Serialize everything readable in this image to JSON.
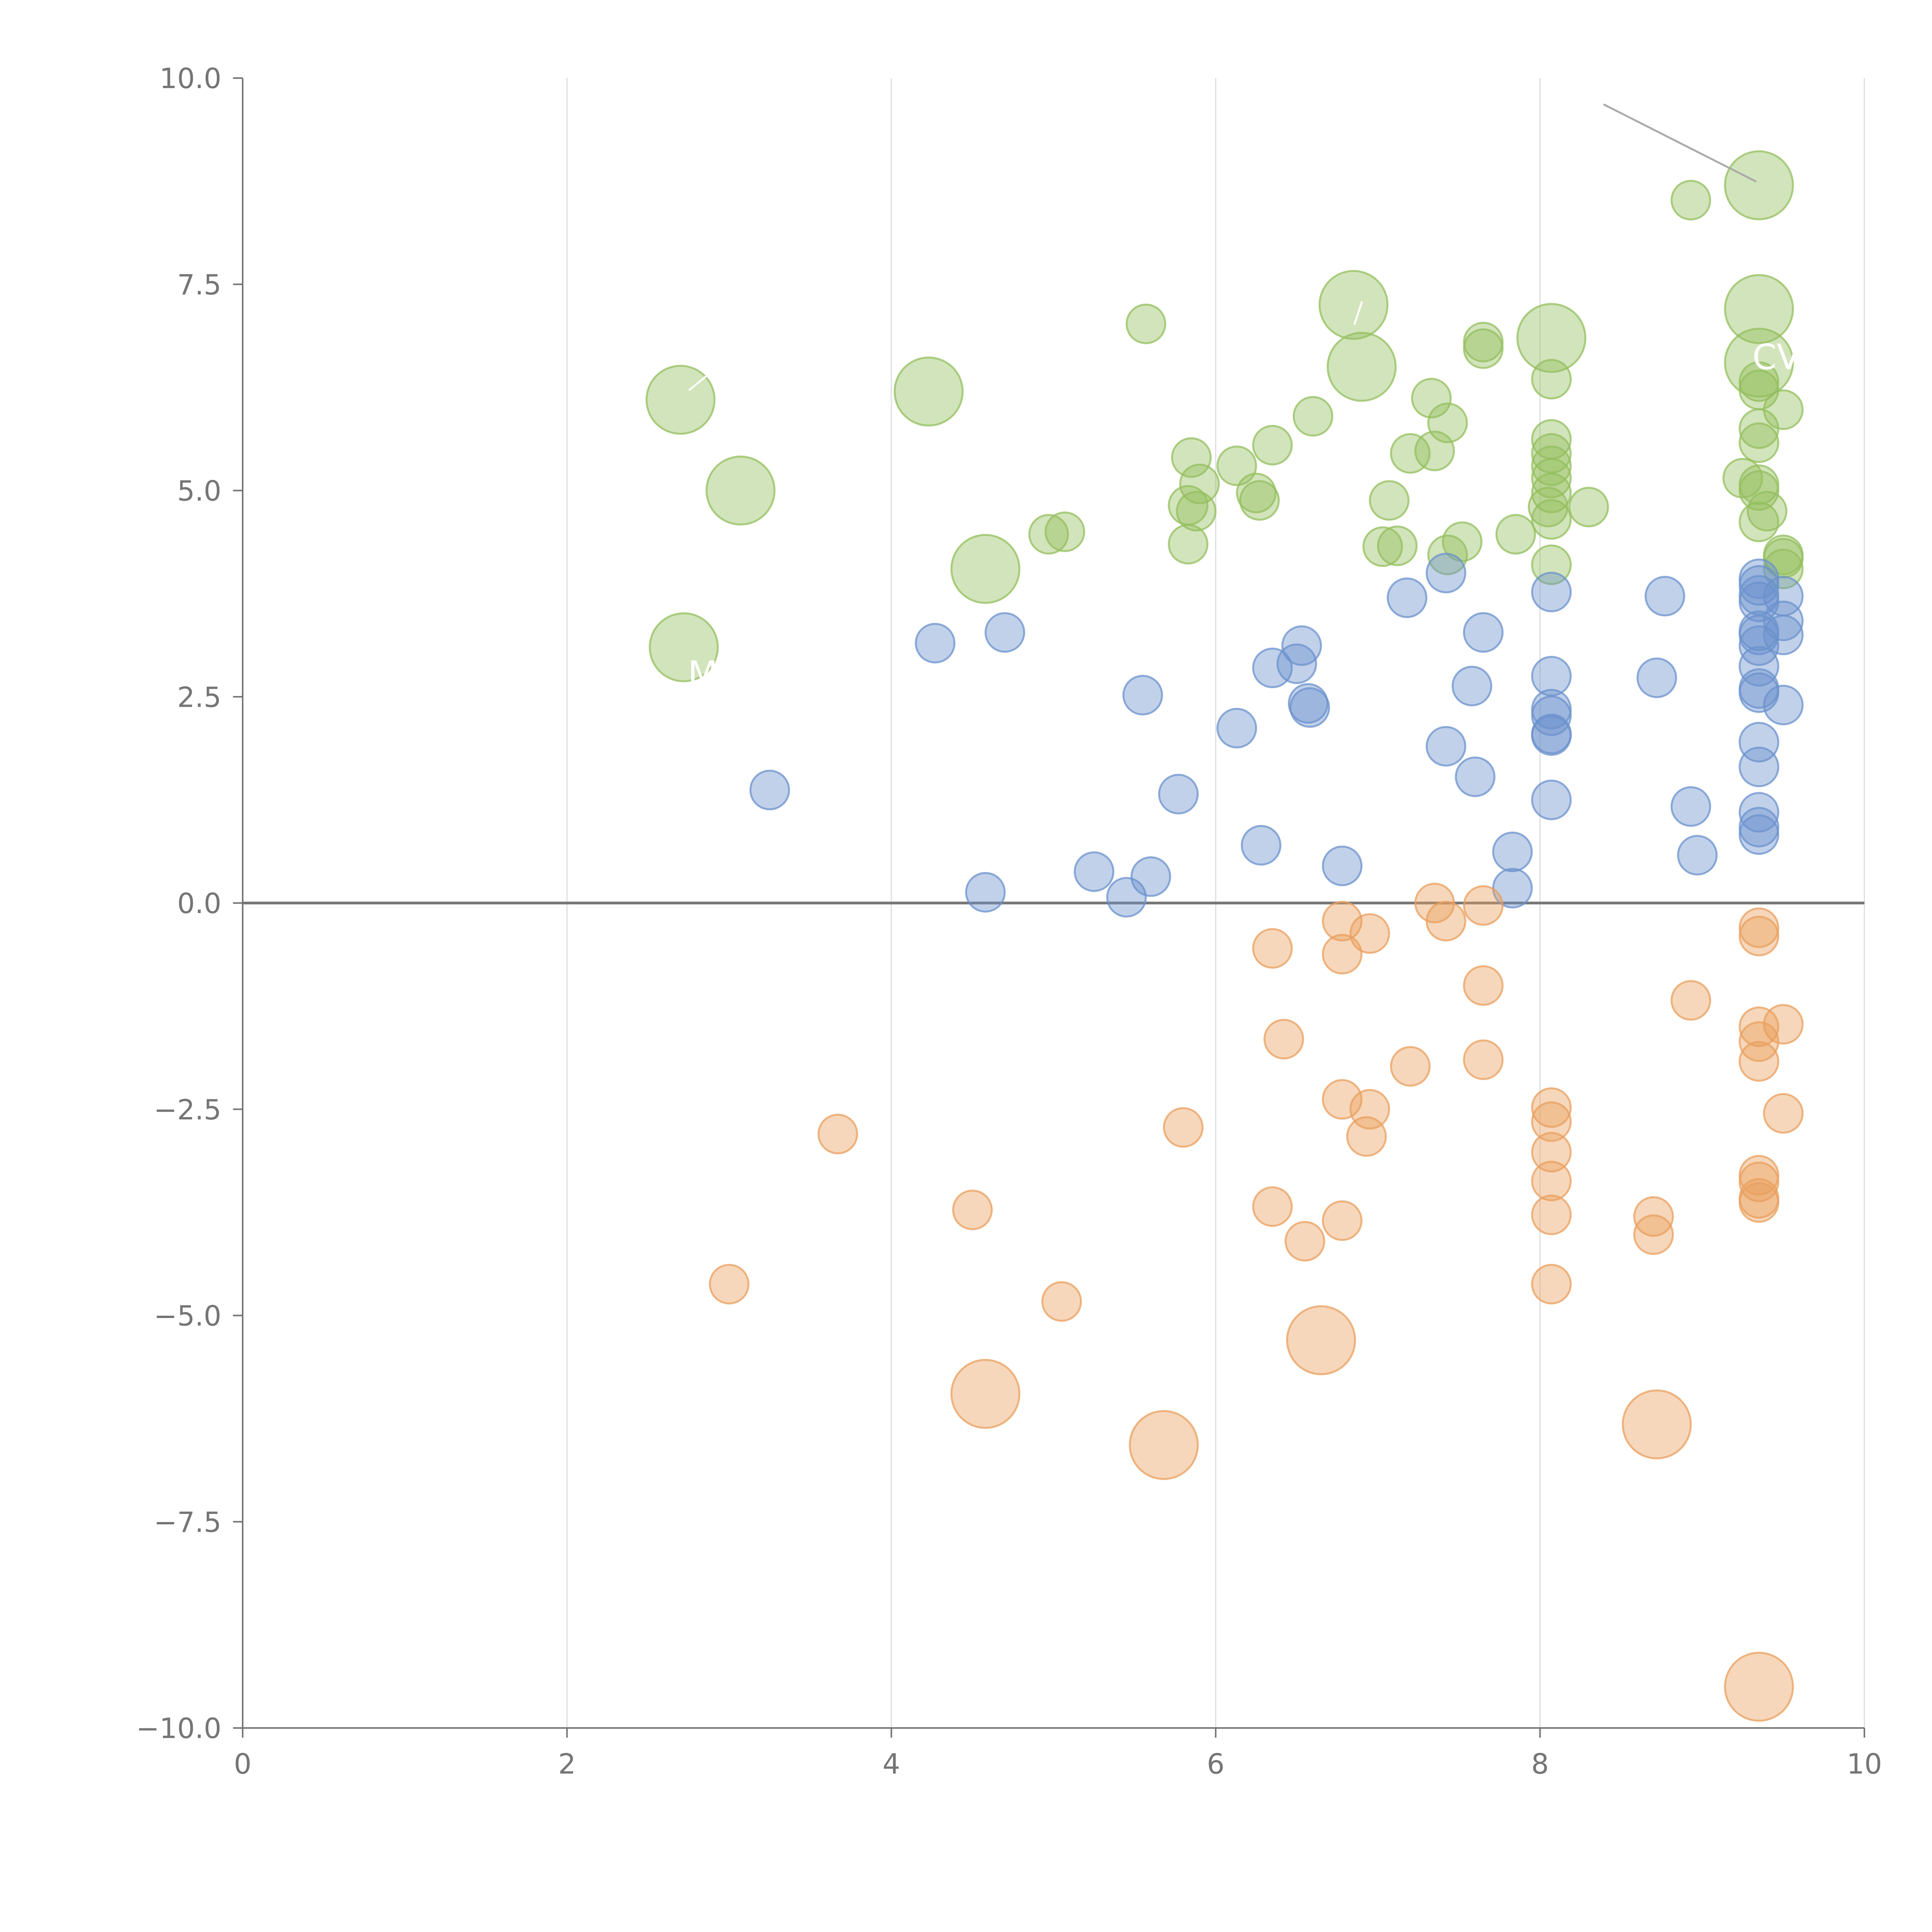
{
  "chart_data": {
    "type": "scatter",
    "title": "",
    "xlabel": "",
    "ylabel": "",
    "xlim": [
      0,
      10
    ],
    "ylim": [
      -10,
      10
    ],
    "x_ticks": [
      0,
      2,
      4,
      6,
      8,
      10
    ],
    "x_tick_labels": [
      "0",
      "2",
      "4",
      "6",
      "8",
      "10"
    ],
    "y_ticks": [
      10,
      7.5,
      5,
      2.5,
      0,
      -2.5,
      -5,
      -7.5,
      -10
    ],
    "y_tick_labels": [
      "10.0",
      "7.5",
      "5.0",
      "2.5",
      "0.0",
      "−2.5",
      "−5.0",
      "−7.5",
      "−10.0"
    ],
    "vertical_gridlines": true,
    "zero_line": 0,
    "annotation_texts": [
      "CVX",
      "M"
    ],
    "colors": {
      "green": "#93bf5e",
      "blue": "#6b92cc",
      "orange": "#e99f5e",
      "axis": "#757575",
      "grid": "#dddddd",
      "leader": "#aaaaaa"
    },
    "series": [
      {
        "name": "green",
        "color": "#93bf5e",
        "points": [
          {
            "x": 9.35,
            "y": 8.7,
            "size": "large"
          },
          {
            "x": 9.35,
            "y": 7.2,
            "size": "large"
          },
          {
            "x": 9.35,
            "y": 6.55,
            "size": "large"
          },
          {
            "x": 8.07,
            "y": 6.85,
            "size": "large"
          },
          {
            "x": 6.85,
            "y": 7.25,
            "size": "large"
          },
          {
            "x": 6.9,
            "y": 6.5,
            "size": "large"
          },
          {
            "x": 4.23,
            "y": 6.2,
            "size": "large"
          },
          {
            "x": 2.7,
            "y": 6.1,
            "size": "large"
          },
          {
            "x": 3.07,
            "y": 5.0,
            "size": "large"
          },
          {
            "x": 4.58,
            "y": 4.05,
            "size": "large"
          },
          {
            "x": 2.72,
            "y": 3.1,
            "size": "large"
          },
          {
            "x": 8.93,
            "y": 8.52
          },
          {
            "x": 5.57,
            "y": 7.02
          },
          {
            "x": 7.65,
            "y": 6.8
          },
          {
            "x": 7.65,
            "y": 6.72
          },
          {
            "x": 6.6,
            "y": 5.9
          },
          {
            "x": 7.33,
            "y": 6.12
          },
          {
            "x": 7.43,
            "y": 5.82
          },
          {
            "x": 6.35,
            "y": 5.55
          },
          {
            "x": 7.2,
            "y": 5.45
          },
          {
            "x": 7.35,
            "y": 5.48
          },
          {
            "x": 5.85,
            "y": 5.4
          },
          {
            "x": 6.13,
            "y": 5.3
          },
          {
            "x": 5.9,
            "y": 5.08
          },
          {
            "x": 6.25,
            "y": 4.97
          },
          {
            "x": 6.27,
            "y": 4.88
          },
          {
            "x": 5.83,
            "y": 4.82
          },
          {
            "x": 5.88,
            "y": 4.75
          },
          {
            "x": 7.07,
            "y": 4.88
          },
          {
            "x": 4.97,
            "y": 4.47
          },
          {
            "x": 5.07,
            "y": 4.5
          },
          {
            "x": 5.83,
            "y": 4.35
          },
          {
            "x": 7.03,
            "y": 4.32
          },
          {
            "x": 7.12,
            "y": 4.33
          },
          {
            "x": 7.43,
            "y": 4.22
          },
          {
            "x": 7.52,
            "y": 4.38
          },
          {
            "x": 7.85,
            "y": 4.47
          },
          {
            "x": 8.07,
            "y": 6.35
          },
          {
            "x": 8.07,
            "y": 5.62
          },
          {
            "x": 8.07,
            "y": 5.45
          },
          {
            "x": 8.07,
            "y": 5.3
          },
          {
            "x": 8.07,
            "y": 5.15
          },
          {
            "x": 8.07,
            "y": 4.97
          },
          {
            "x": 8.05,
            "y": 4.8
          },
          {
            "x": 8.07,
            "y": 4.65
          },
          {
            "x": 8.07,
            "y": 4.1
          },
          {
            "x": 8.3,
            "y": 4.8
          },
          {
            "x": 9.35,
            "y": 6.32
          },
          {
            "x": 9.35,
            "y": 6.22
          },
          {
            "x": 9.5,
            "y": 5.98
          },
          {
            "x": 9.35,
            "y": 5.75
          },
          {
            "x": 9.35,
            "y": 5.58
          },
          {
            "x": 9.25,
            "y": 5.15
          },
          {
            "x": 9.35,
            "y": 5.07
          },
          {
            "x": 9.35,
            "y": 5.0
          },
          {
            "x": 9.4,
            "y": 4.75
          },
          {
            "x": 9.35,
            "y": 4.62
          },
          {
            "x": 9.5,
            "y": 4.22
          },
          {
            "x": 9.5,
            "y": 4.18
          },
          {
            "x": 9.5,
            "y": 4.05
          }
        ]
      },
      {
        "name": "blue",
        "color": "#6b92cc",
        "points": [
          {
            "x": 3.25,
            "y": 1.37
          },
          {
            "x": 4.27,
            "y": 3.15
          },
          {
            "x": 4.7,
            "y": 3.28
          },
          {
            "x": 4.58,
            "y": 0.13
          },
          {
            "x": 5.25,
            "y": 0.38
          },
          {
            "x": 5.45,
            "y": 0.07
          },
          {
            "x": 5.6,
            "y": 0.32
          },
          {
            "x": 5.77,
            "y": 1.32
          },
          {
            "x": 5.55,
            "y": 2.52
          },
          {
            "x": 6.13,
            "y": 2.12
          },
          {
            "x": 6.28,
            "y": 0.7
          },
          {
            "x": 6.35,
            "y": 2.85
          },
          {
            "x": 6.5,
            "y": 2.9
          },
          {
            "x": 6.53,
            "y": 3.12
          },
          {
            "x": 6.57,
            "y": 2.42
          },
          {
            "x": 6.58,
            "y": 2.37
          },
          {
            "x": 6.78,
            "y": 0.45
          },
          {
            "x": 7.18,
            "y": 3.7
          },
          {
            "x": 7.42,
            "y": 4.0
          },
          {
            "x": 7.42,
            "y": 1.9
          },
          {
            "x": 7.58,
            "y": 2.63
          },
          {
            "x": 7.6,
            "y": 1.53
          },
          {
            "x": 7.65,
            "y": 3.28
          },
          {
            "x": 7.83,
            "y": 0.62
          },
          {
            "x": 7.83,
            "y": 0.18
          },
          {
            "x": 8.07,
            "y": 3.77
          },
          {
            "x": 8.07,
            "y": 2.75
          },
          {
            "x": 8.07,
            "y": 2.35
          },
          {
            "x": 8.07,
            "y": 2.27
          },
          {
            "x": 8.07,
            "y": 2.05
          },
          {
            "x": 8.07,
            "y": 2.03
          },
          {
            "x": 8.07,
            "y": 1.25
          },
          {
            "x": 8.72,
            "y": 2.73
          },
          {
            "x": 8.77,
            "y": 3.72
          },
          {
            "x": 8.93,
            "y": 1.17
          },
          {
            "x": 8.97,
            "y": 0.58
          },
          {
            "x": 9.35,
            "y": 3.93
          },
          {
            "x": 9.35,
            "y": 3.85
          },
          {
            "x": 9.35,
            "y": 3.73
          },
          {
            "x": 9.35,
            "y": 3.65
          },
          {
            "x": 9.35,
            "y": 3.3
          },
          {
            "x": 9.35,
            "y": 3.25
          },
          {
            "x": 9.35,
            "y": 3.12
          },
          {
            "x": 9.35,
            "y": 2.87
          },
          {
            "x": 9.35,
            "y": 2.6
          },
          {
            "x": 9.35,
            "y": 2.55
          },
          {
            "x": 9.35,
            "y": 1.95
          },
          {
            "x": 9.35,
            "y": 1.65
          },
          {
            "x": 9.35,
            "y": 1.1
          },
          {
            "x": 9.35,
            "y": 0.92
          },
          {
            "x": 9.35,
            "y": 0.83
          },
          {
            "x": 9.5,
            "y": 3.72
          },
          {
            "x": 9.5,
            "y": 3.42
          },
          {
            "x": 9.5,
            "y": 3.25
          },
          {
            "x": 9.5,
            "y": 2.4
          }
        ]
      },
      {
        "name": "orange",
        "color": "#e99f5e",
        "points": [
          {
            "x": 9.35,
            "y": -9.5,
            "size": "large"
          },
          {
            "x": 8.72,
            "y": -6.32,
            "size": "large"
          },
          {
            "x": 6.65,
            "y": -5.3,
            "size": "large"
          },
          {
            "x": 5.68,
            "y": -6.57,
            "size": "large"
          },
          {
            "x": 4.58,
            "y": -5.95,
            "size": "large"
          },
          {
            "x": 3.0,
            "y": -4.62
          },
          {
            "x": 3.67,
            "y": -2.8
          },
          {
            "x": 4.5,
            "y": -3.72
          },
          {
            "x": 5.05,
            "y": -4.83
          },
          {
            "x": 5.8,
            "y": -2.72
          },
          {
            "x": 6.35,
            "y": -0.55
          },
          {
            "x": 6.42,
            "y": -1.65
          },
          {
            "x": 6.35,
            "y": -3.68
          },
          {
            "x": 6.55,
            "y": -4.1
          },
          {
            "x": 6.78,
            "y": -0.22
          },
          {
            "x": 6.78,
            "y": -0.62
          },
          {
            "x": 6.78,
            "y": -2.38
          },
          {
            "x": 6.78,
            "y": -3.85
          },
          {
            "x": 6.95,
            "y": -0.37
          },
          {
            "x": 6.95,
            "y": -2.5
          },
          {
            "x": 6.93,
            "y": -2.83
          },
          {
            "x": 7.2,
            "y": -1.98
          },
          {
            "x": 7.35,
            "y": 0.0
          },
          {
            "x": 7.42,
            "y": -0.22
          },
          {
            "x": 7.65,
            "y": -0.03
          },
          {
            "x": 7.65,
            "y": -1.0
          },
          {
            "x": 7.65,
            "y": -1.9
          },
          {
            "x": 8.07,
            "y": -2.48
          },
          {
            "x": 8.07,
            "y": -2.65
          },
          {
            "x": 8.07,
            "y": -3.02
          },
          {
            "x": 8.07,
            "y": -3.37
          },
          {
            "x": 8.07,
            "y": -3.78
          },
          {
            "x": 8.07,
            "y": -4.62
          },
          {
            "x": 8.7,
            "y": -3.8
          },
          {
            "x": 8.7,
            "y": -4.02
          },
          {
            "x": 8.93,
            "y": -1.18
          },
          {
            "x": 9.35,
            "y": -0.3
          },
          {
            "x": 9.35,
            "y": -0.4
          },
          {
            "x": 9.35,
            "y": -1.5
          },
          {
            "x": 9.35,
            "y": -1.68
          },
          {
            "x": 9.35,
            "y": -1.92
          },
          {
            "x": 9.35,
            "y": -3.3
          },
          {
            "x": 9.35,
            "y": -3.38
          },
          {
            "x": 9.35,
            "y": -3.58
          },
          {
            "x": 9.35,
            "y": -3.63
          },
          {
            "x": 9.5,
            "y": -1.47
          },
          {
            "x": 9.5,
            "y": -2.55
          }
        ]
      }
    ]
  }
}
